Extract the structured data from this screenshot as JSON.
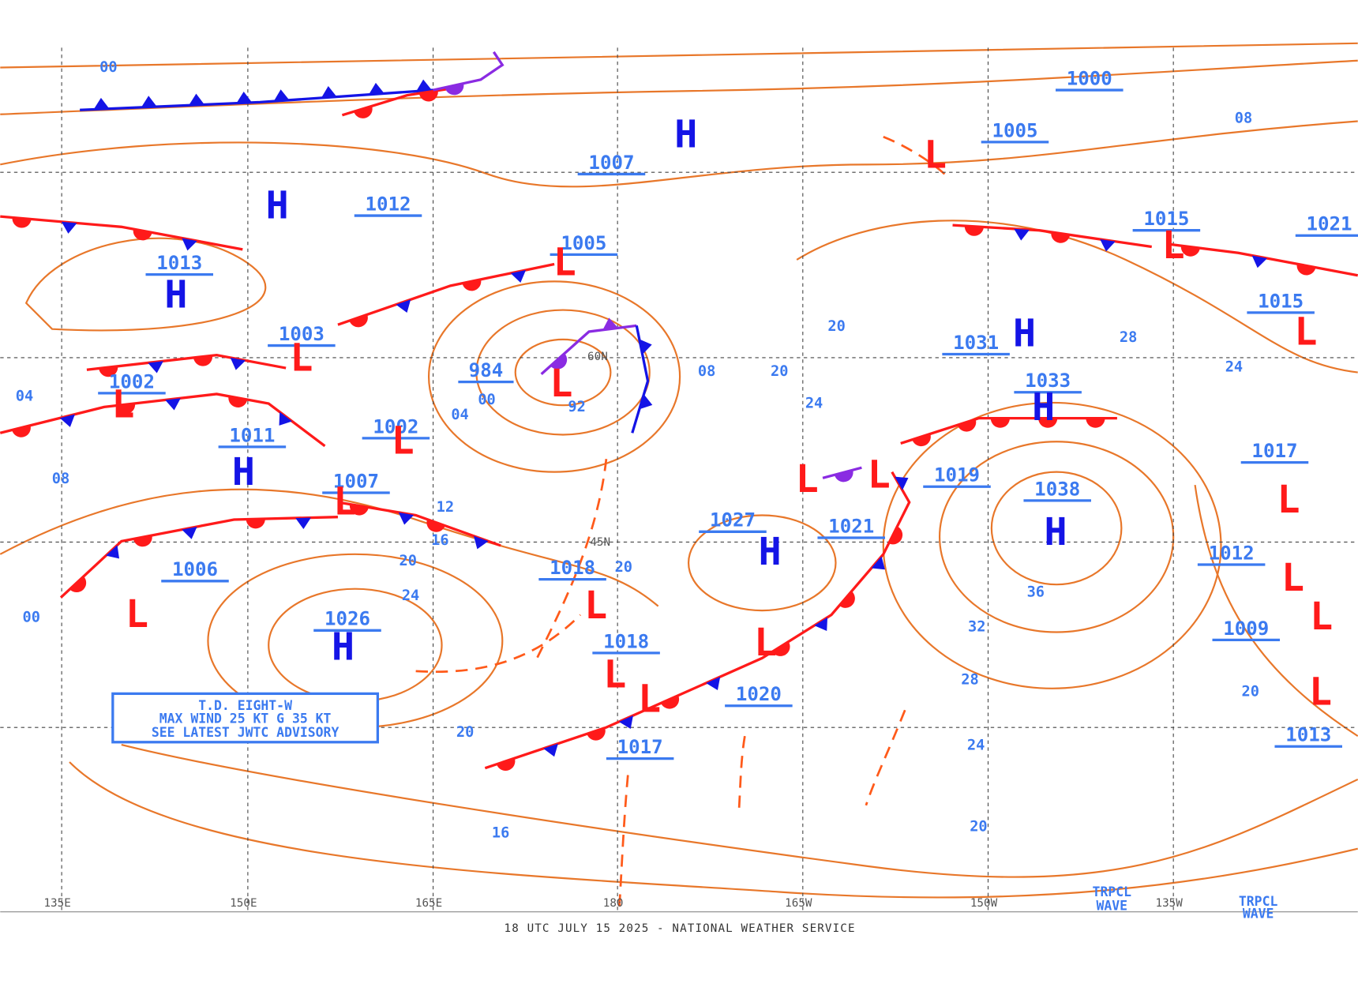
{
  "systems": [
    {
      "pressure": "1000"
    },
    {
      "pressure": "1005"
    },
    {
      "pressure": "1007"
    },
    {
      "pressure": "1012"
    },
    {
      "pressure": "1013",
      "symbol": "H"
    },
    {
      "pressure": "1005",
      "symbol": "L"
    },
    {
      "pressure": "1003",
      "symbol": "L"
    },
    {
      "pressure": "984",
      "symbol": "L"
    },
    {
      "pressure": "1002",
      "symbol": "L"
    },
    {
      "pressure": "1011",
      "symbol": "H"
    },
    {
      "pressure": "1002",
      "symbol": "L"
    },
    {
      "pressure": "1007",
      "symbol": "L"
    },
    {
      "pressure": "1006",
      "symbol": "L"
    },
    {
      "pressure": "1026",
      "symbol": "H"
    },
    {
      "pressure": "1018",
      "symbol": "L"
    },
    {
      "pressure": "1018",
      "symbol": "L"
    },
    {
      "pressure": "1027",
      "symbol": "H"
    },
    {
      "pressure": "1021",
      "symbol": "L"
    },
    {
      "pressure": "1020",
      "symbol": "L"
    },
    {
      "pressure": "1017",
      "symbol": "L"
    },
    {
      "pressure": "1019",
      "symbol": "L"
    },
    {
      "pressure": "1038",
      "symbol": "H"
    },
    {
      "pressure": "1031",
      "symbol": "H"
    },
    {
      "pressure": "1033",
      "symbol": "H"
    },
    {
      "pressure": "1015",
      "symbol": "L"
    },
    {
      "pressure": "1021"
    },
    {
      "pressure": "1015",
      "symbol": "L"
    },
    {
      "pressure": "1017",
      "symbol": "L"
    },
    {
      "pressure": "1012",
      "symbol": "L"
    },
    {
      "pressure": "1009",
      "symbol": "L"
    },
    {
      "pressure": "1013",
      "symbol": "L"
    }
  ],
  "extra_symbols": [
    "H",
    "H",
    "L"
  ],
  "isobar_labels": [
    "00",
    "08",
    "04",
    "08",
    "00",
    "04",
    "00",
    "92",
    "08",
    "20",
    "20",
    "24",
    "28",
    "24",
    "12",
    "16",
    "20",
    "24",
    "20",
    "36",
    "32",
    "28",
    "24",
    "20",
    "20",
    "16",
    "20"
  ],
  "latitude_labels": [
    "60N",
    "45N"
  ],
  "longitude_labels": [
    "135E",
    "150E",
    "165E",
    "180",
    "165W",
    "150W",
    "135W"
  ],
  "tropical_waves": [
    [
      "TRPCL",
      "WAVE"
    ],
    [
      "TRPCL",
      "WAVE"
    ]
  ],
  "advisory": [
    "T.D. EIGHT-W",
    "MAX WIND 25 KT G 35 KT",
    "SEE LATEST JWTC ADVISORY"
  ],
  "footer": "18 UTC JULY 15 2025 - NATIONAL WEATHER SERVICE"
}
